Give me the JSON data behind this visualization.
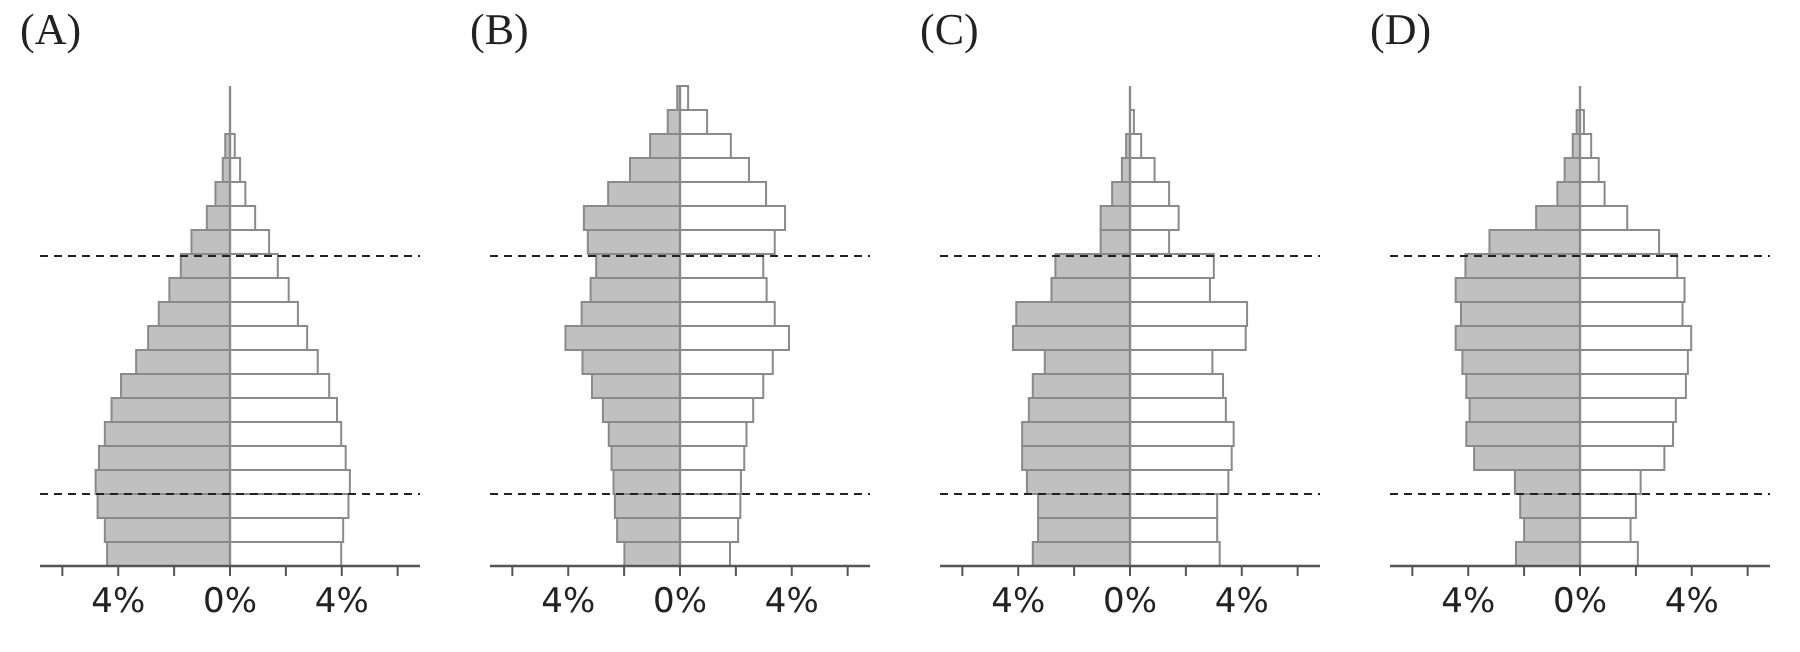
{
  "chart_data": [
    {
      "type": "bar",
      "title": "(A)",
      "orientation": "horizontal",
      "stacked": true,
      "categories": [
        null,
        null,
        null,
        null,
        null,
        null,
        null,
        null,
        null,
        null,
        null,
        null,
        null,
        null,
        null,
        null,
        null,
        null,
        null,
        null
      ],
      "series": [
        {
          "color": "#c0c0c0",
          "values": [
            null,
            null,
            -0.17,
            -0.26,
            -0.52,
            -0.83,
            -1.38,
            -1.76,
            -2.17,
            -2.55,
            -2.93,
            -3.36,
            -3.9,
            -4.24,
            -4.48,
            -4.69,
            -4.81,
            -4.74,
            -4.48,
            -4.4
          ]
        },
        {
          "color": "#ffffff",
          "values": [
            null,
            null,
            0.17,
            0.36,
            0.55,
            0.9,
            1.4,
            1.71,
            2.1,
            2.43,
            2.76,
            3.14,
            3.55,
            3.83,
            3.98,
            4.14,
            4.29,
            4.24,
            4.05,
            3.98
          ]
        }
      ],
      "xlim": [
        -6.8,
        6.8
      ],
      "xticks": [
        {
          "value": -6,
          "label": null
        },
        {
          "value": -4,
          "label": "4%"
        },
        {
          "value": -2,
          "label": null
        },
        {
          "value": 0,
          "label": "0%"
        },
        {
          "value": 2,
          "label": null
        },
        {
          "value": 4,
          "label": "4%"
        },
        {
          "value": 6,
          "label": null
        }
      ]
    },
    {
      "type": "bar",
      "title": "(B)",
      "orientation": "horizontal",
      "stacked": true,
      "categories": [
        null,
        null,
        null,
        null,
        null,
        null,
        null,
        null,
        null,
        null,
        null,
        null,
        null,
        null,
        null,
        null,
        null,
        null,
        null,
        null
      ],
      "series": [
        {
          "color": "#c0c0c0",
          "values": [
            -0.1,
            -0.44,
            -1.07,
            -1.79,
            -2.57,
            -3.44,
            -3.3,
            -3.0,
            -3.2,
            -3.52,
            -4.1,
            -3.49,
            -3.15,
            -2.76,
            -2.55,
            -2.45,
            -2.38,
            -2.33,
            -2.25,
            -1.99
          ]
        },
        {
          "color": "#ffffff",
          "values": [
            0.29,
            0.97,
            1.82,
            2.47,
            3.08,
            3.76,
            3.39,
            2.98,
            3.1,
            3.39,
            3.9,
            3.32,
            2.98,
            2.62,
            2.38,
            2.3,
            2.18,
            2.16,
            2.08,
            1.79
          ]
        }
      ],
      "xlim": [
        -6.8,
        6.8
      ],
      "xticks": [
        {
          "value": -6,
          "label": null
        },
        {
          "value": -4,
          "label": "4%"
        },
        {
          "value": -2,
          "label": null
        },
        {
          "value": 0,
          "label": "0%"
        },
        {
          "value": 2,
          "label": null
        },
        {
          "value": 4,
          "label": "4%"
        },
        {
          "value": 6,
          "label": null
        }
      ]
    },
    {
      "type": "bar",
      "title": "(C)",
      "orientation": "horizontal",
      "stacked": true,
      "categories": [
        null,
        null,
        null,
        null,
        null,
        null,
        null,
        null,
        null,
        null,
        null,
        null,
        null,
        null,
        null,
        null,
        null,
        null,
        null,
        null
      ],
      "series": [
        {
          "color": "#c0c0c0",
          "values": [
            null,
            null,
            -0.14,
            -0.29,
            -0.64,
            -1.05,
            -1.05,
            -2.67,
            -2.81,
            -4.07,
            -4.19,
            -3.05,
            -3.48,
            -3.62,
            -3.86,
            -3.86,
            -3.69,
            -3.29,
            -3.29,
            -3.48
          ]
        },
        {
          "color": "#ffffff",
          "values": [
            null,
            0.14,
            0.4,
            0.88,
            1.4,
            1.74,
            1.4,
            3.0,
            2.86,
            4.19,
            4.14,
            2.95,
            3.33,
            3.43,
            3.71,
            3.64,
            3.52,
            3.12,
            3.12,
            3.21
          ]
        }
      ],
      "xlim": [
        -6.8,
        6.8
      ],
      "xticks": [
        {
          "value": -6,
          "label": null
        },
        {
          "value": -4,
          "label": "4%"
        },
        {
          "value": -2,
          "label": null
        },
        {
          "value": 0,
          "label": "0%"
        },
        {
          "value": 2,
          "label": null
        },
        {
          "value": 4,
          "label": "4%"
        },
        {
          "value": 6,
          "label": null
        }
      ]
    },
    {
      "type": "bar",
      "title": "(D)",
      "orientation": "horizontal",
      "stacked": true,
      "categories": [
        null,
        null,
        null,
        null,
        null,
        null,
        null,
        null,
        null,
        null,
        null,
        null,
        null,
        null,
        null,
        null,
        null,
        null,
        null,
        null
      ],
      "series": [
        {
          "color": "#c0c0c0",
          "values": [
            null,
            -0.12,
            -0.26,
            -0.55,
            -0.81,
            -1.57,
            -3.24,
            -4.1,
            -4.45,
            -4.26,
            -4.45,
            -4.21,
            -4.07,
            -3.95,
            -4.07,
            -3.79,
            -2.33,
            -2.14,
            -2.0,
            -2.29
          ]
        },
        {
          "color": "#ffffff",
          "values": [
            null,
            0.14,
            0.4,
            0.67,
            0.88,
            1.69,
            2.83,
            3.48,
            3.74,
            3.67,
            3.98,
            3.86,
            3.79,
            3.43,
            3.33,
            3.02,
            2.17,
            2.0,
            1.81,
            2.07
          ]
        }
      ],
      "xlim": [
        -6.8,
        6.8
      ],
      "xticks": [
        {
          "value": -6,
          "label": null
        },
        {
          "value": -4,
          "label": "4%"
        },
        {
          "value": -2,
          "label": null
        },
        {
          "value": 0,
          "label": "0%"
        },
        {
          "value": 2,
          "label": null
        },
        {
          "value": 4,
          "label": "4%"
        },
        {
          "value": 6,
          "label": null
        }
      ]
    }
  ]
}
